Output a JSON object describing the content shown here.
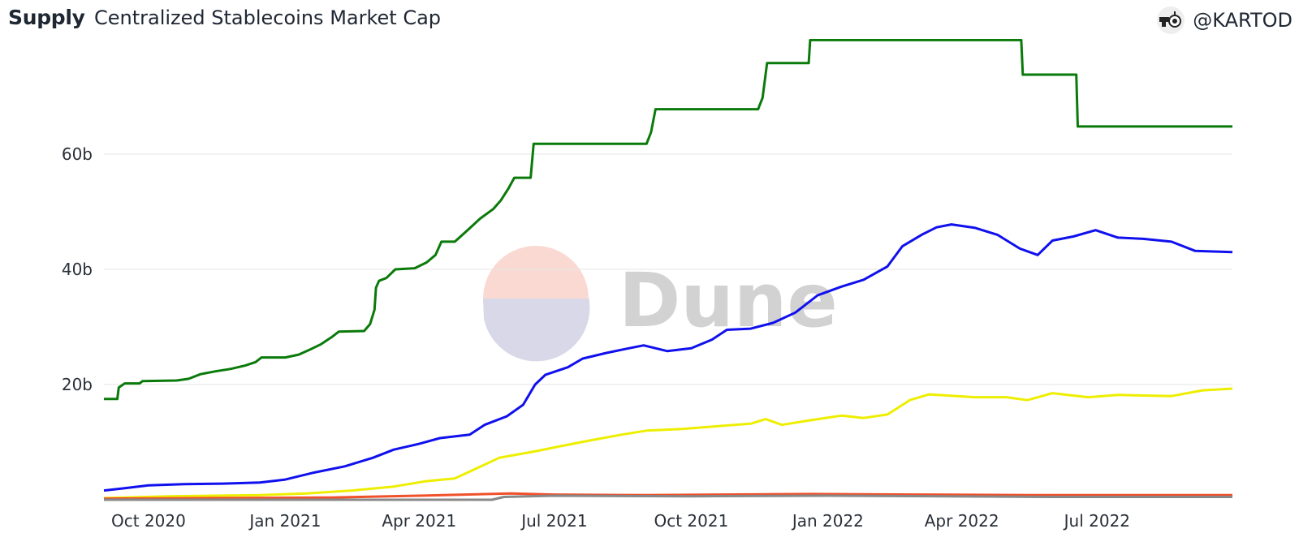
{
  "header": {
    "title": "Supply",
    "subtitle": "Centralized Stablecoins Market Cap",
    "author": "@KARTOD"
  },
  "colors": {
    "green": "#0a7a0a",
    "blue": "#1010ee",
    "yellow": "#eeee00",
    "orange": "#f0502a",
    "gray": "#888888",
    "grid": "#e6e6e6"
  },
  "chart_data": {
    "type": "line",
    "title": "Centralized Stablecoins Market Cap",
    "xlabel": "",
    "ylabel": "",
    "x_ticks": [
      "Oct 2020",
      "Jan 2021",
      "Apr 2021",
      "Jul 2021",
      "Oct 2021",
      "Jan 2022",
      "Apr 2022",
      "Jul 2022"
    ],
    "y_ticks": [
      "20b",
      "40b",
      "60b"
    ],
    "ylim": [
      0,
      80
    ],
    "xlim": [
      "2020-09-01",
      "2022-09-30"
    ],
    "grid": true,
    "legend": "none",
    "watermark": "Dune",
    "series": [
      {
        "color": "#0a7a0a",
        "points": [
          [
            "2020-09-01",
            17.5
          ],
          [
            "2020-09-10",
            17.5
          ],
          [
            "2020-09-11",
            19.5
          ],
          [
            "2020-09-15",
            20.2
          ],
          [
            "2020-09-25",
            20.2
          ],
          [
            "2020-09-27",
            20.6
          ],
          [
            "2020-10-20",
            20.7
          ],
          [
            "2020-10-28",
            21.0
          ],
          [
            "2020-11-05",
            21.8
          ],
          [
            "2020-11-15",
            22.3
          ],
          [
            "2020-11-25",
            22.7
          ],
          [
            "2020-12-05",
            23.3
          ],
          [
            "2020-12-12",
            23.9
          ],
          [
            "2020-12-16",
            24.7
          ],
          [
            "2021-01-01",
            24.7
          ],
          [
            "2021-01-10",
            25.2
          ],
          [
            "2021-01-17",
            26.0
          ],
          [
            "2021-01-25",
            27.0
          ],
          [
            "2021-02-01",
            28.2
          ],
          [
            "2021-02-06",
            29.2
          ],
          [
            "2021-02-23",
            29.3
          ],
          [
            "2021-02-27",
            30.5
          ],
          [
            "2021-03-02",
            33.0
          ],
          [
            "2021-03-03",
            36.8
          ],
          [
            "2021-03-05",
            38.0
          ],
          [
            "2021-03-10",
            38.5
          ],
          [
            "2021-03-16",
            40.0
          ],
          [
            "2021-03-29",
            40.2
          ],
          [
            "2021-04-06",
            41.2
          ],
          [
            "2021-04-12",
            42.5
          ],
          [
            "2021-04-16",
            44.8
          ],
          [
            "2021-04-25",
            44.8
          ],
          [
            "2021-05-04",
            46.9
          ],
          [
            "2021-05-12",
            48.8
          ],
          [
            "2021-05-21",
            50.5
          ],
          [
            "2021-05-26",
            52.0
          ],
          [
            "2021-05-31",
            54.0
          ],
          [
            "2021-06-04",
            55.9
          ],
          [
            "2021-06-15",
            55.9
          ],
          [
            "2021-06-17",
            61.8
          ],
          [
            "2021-09-01",
            61.8
          ],
          [
            "2021-09-04",
            63.8
          ],
          [
            "2021-09-07",
            67.8
          ],
          [
            "2021-11-15",
            67.8
          ],
          [
            "2021-11-18",
            69.8
          ],
          [
            "2021-11-21",
            75.8
          ],
          [
            "2021-12-19",
            75.8
          ],
          [
            "2021-12-20",
            79.8
          ],
          [
            "2022-05-11",
            79.8
          ],
          [
            "2022-05-12",
            73.8
          ],
          [
            "2022-06-17",
            73.8
          ],
          [
            "2022-06-18",
            64.8
          ],
          [
            "2022-09-30",
            64.8
          ]
        ]
      },
      {
        "color": "#1010ee",
        "points": [
          [
            "2020-09-01",
            1.6
          ],
          [
            "2020-09-15",
            2.0
          ],
          [
            "2020-10-01",
            2.5
          ],
          [
            "2020-10-25",
            2.7
          ],
          [
            "2020-11-20",
            2.8
          ],
          [
            "2020-12-15",
            3.0
          ],
          [
            "2021-01-01",
            3.5
          ],
          [
            "2021-01-20",
            4.7
          ],
          [
            "2021-02-10",
            5.8
          ],
          [
            "2021-03-01",
            7.3
          ],
          [
            "2021-03-15",
            8.7
          ],
          [
            "2021-04-01",
            9.7
          ],
          [
            "2021-04-15",
            10.7
          ],
          [
            "2021-05-05",
            11.3
          ],
          [
            "2021-05-15",
            13.0
          ],
          [
            "2021-05-30",
            14.5
          ],
          [
            "2021-06-10",
            16.5
          ],
          [
            "2021-06-18",
            20.0
          ],
          [
            "2021-06-25",
            21.7
          ],
          [
            "2021-07-10",
            23.0
          ],
          [
            "2021-07-20",
            24.5
          ],
          [
            "2021-08-05",
            25.5
          ],
          [
            "2021-08-20",
            26.3
          ],
          [
            "2021-08-30",
            26.8
          ],
          [
            "2021-09-15",
            25.8
          ],
          [
            "2021-10-01",
            26.3
          ],
          [
            "2021-10-15",
            27.8
          ],
          [
            "2021-10-25",
            29.5
          ],
          [
            "2021-11-10",
            29.7
          ],
          [
            "2021-11-25",
            30.7
          ],
          [
            "2021-12-10",
            32.5
          ],
          [
            "2021-12-25",
            35.5
          ],
          [
            "2022-01-10",
            37.0
          ],
          [
            "2022-01-25",
            38.2
          ],
          [
            "2022-02-10",
            40.5
          ],
          [
            "2022-02-20",
            44.0
          ],
          [
            "2022-03-05",
            46.0
          ],
          [
            "2022-03-15",
            47.3
          ],
          [
            "2022-03-25",
            47.8
          ],
          [
            "2022-04-10",
            47.2
          ],
          [
            "2022-04-25",
            46.0
          ],
          [
            "2022-05-10",
            43.6
          ],
          [
            "2022-05-22",
            42.5
          ],
          [
            "2022-06-01",
            45.0
          ],
          [
            "2022-06-15",
            45.7
          ],
          [
            "2022-06-30",
            46.8
          ],
          [
            "2022-07-15",
            45.5
          ],
          [
            "2022-08-01",
            45.3
          ],
          [
            "2022-08-20",
            44.8
          ],
          [
            "2022-09-05",
            43.2
          ],
          [
            "2022-09-30",
            43.0
          ]
        ]
      },
      {
        "color": "#eeee00",
        "points": [
          [
            "2020-09-01",
            0.3
          ],
          [
            "2020-10-15",
            0.6
          ],
          [
            "2020-12-15",
            0.8
          ],
          [
            "2021-01-15",
            1.1
          ],
          [
            "2021-02-15",
            1.6
          ],
          [
            "2021-03-15",
            2.3
          ],
          [
            "2021-04-05",
            3.2
          ],
          [
            "2021-04-25",
            3.7
          ],
          [
            "2021-05-10",
            5.5
          ],
          [
            "2021-05-25",
            7.3
          ],
          [
            "2021-06-20",
            8.5
          ],
          [
            "2021-07-05",
            9.3
          ],
          [
            "2021-07-25",
            10.3
          ],
          [
            "2021-08-15",
            11.3
          ],
          [
            "2021-09-01",
            12.0
          ],
          [
            "2021-09-25",
            12.3
          ],
          [
            "2021-10-20",
            12.8
          ],
          [
            "2021-11-10",
            13.2
          ],
          [
            "2021-11-20",
            14.0
          ],
          [
            "2021-12-01",
            13.0
          ],
          [
            "2021-12-20",
            13.8
          ],
          [
            "2022-01-10",
            14.6
          ],
          [
            "2022-01-25",
            14.2
          ],
          [
            "2022-02-10",
            14.8
          ],
          [
            "2022-02-25",
            17.3
          ],
          [
            "2022-03-10",
            18.3
          ],
          [
            "2022-04-10",
            17.8
          ],
          [
            "2022-05-01",
            17.8
          ],
          [
            "2022-05-15",
            17.3
          ],
          [
            "2022-06-01",
            18.5
          ],
          [
            "2022-06-25",
            17.8
          ],
          [
            "2022-07-15",
            18.2
          ],
          [
            "2022-08-20",
            18.0
          ],
          [
            "2022-09-10",
            19.0
          ],
          [
            "2022-09-30",
            19.3
          ]
        ]
      },
      {
        "color": "#f0502a",
        "points": [
          [
            "2020-09-01",
            0.2
          ],
          [
            "2021-02-01",
            0.4
          ],
          [
            "2021-04-01",
            0.7
          ],
          [
            "2021-06-01",
            1.1
          ],
          [
            "2021-07-01",
            0.9
          ],
          [
            "2021-09-01",
            0.8
          ],
          [
            "2021-10-20",
            0.9
          ],
          [
            "2021-12-20",
            1.0
          ],
          [
            "2022-03-01",
            0.9
          ],
          [
            "2022-06-01",
            0.8
          ],
          [
            "2022-09-30",
            0.8
          ]
        ]
      },
      {
        "color": "#888888",
        "points": [
          [
            "2020-09-01",
            0.0
          ],
          [
            "2021-05-20",
            0.0
          ],
          [
            "2021-05-28",
            0.5
          ],
          [
            "2021-07-01",
            0.7
          ],
          [
            "2021-10-01",
            0.6
          ],
          [
            "2022-01-01",
            0.7
          ],
          [
            "2022-06-01",
            0.5
          ],
          [
            "2022-09-30",
            0.5
          ]
        ]
      }
    ]
  }
}
